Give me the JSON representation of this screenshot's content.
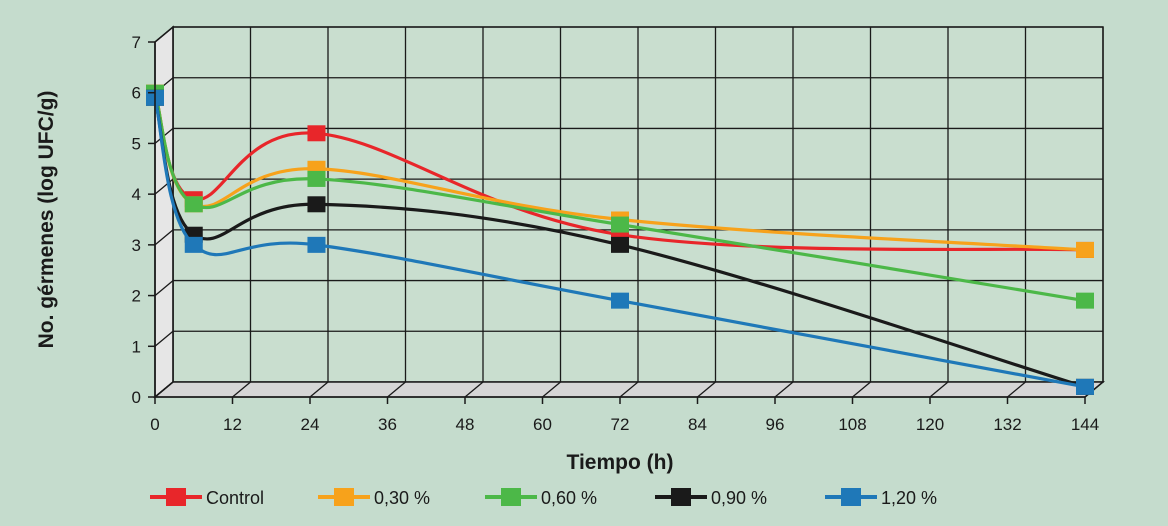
{
  "chart_data": {
    "type": "line",
    "title": "",
    "xlabel": "Tiempo (h)",
    "ylabel": "No. gérmenes (log UFC/g)",
    "xlim": [
      0,
      144
    ],
    "ylim": [
      0,
      7
    ],
    "xticks": [
      "0",
      "12",
      "24",
      "36",
      "48",
      "60",
      "72",
      "84",
      "96",
      "108",
      "120",
      "132",
      "144"
    ],
    "yticks": [
      "0",
      "1",
      "2",
      "3",
      "4",
      "5",
      "6",
      "7"
    ],
    "grid": true,
    "legend_position": "bottom",
    "x": [
      0,
      6,
      25,
      72,
      144
    ],
    "series": [
      {
        "name": "Control",
        "color": "#e8262a",
        "values": [
          6.0,
          3.9,
          5.2,
          3.2,
          2.9
        ]
      },
      {
        "name": "0,30 %",
        "color": "#f7a21b",
        "values": [
          6.0,
          3.8,
          4.5,
          3.5,
          2.9
        ]
      },
      {
        "name": "0,60 %",
        "color": "#4cb848",
        "values": [
          6.0,
          3.8,
          4.3,
          3.4,
          1.9
        ]
      },
      {
        "name": "0,90 %",
        "color": "#1a1a1a",
        "values": [
          5.9,
          3.2,
          3.8,
          3.0,
          0.2
        ]
      },
      {
        "name": "1,20 %",
        "color": "#1f78b8",
        "values": [
          5.9,
          3.0,
          3.0,
          1.9,
          0.2
        ]
      }
    ]
  }
}
